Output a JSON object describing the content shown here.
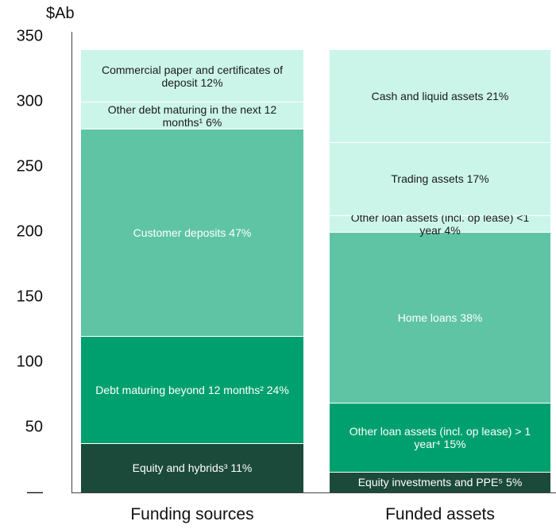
{
  "chart_data": {
    "type": "stacked_bar",
    "y_label": "$Ab",
    "ylim": [
      0,
      350
    ],
    "yticks": [
      {
        "value": 0,
        "label": "—"
      },
      50,
      100,
      150,
      200,
      250,
      300,
      350
    ],
    "bars": [
      {
        "category": "Funding sources",
        "segments": [
          {
            "label": "Equity and hybrids³ 11%",
            "value": 38,
            "color": "#1c4a3a",
            "text_color": "#ffffff"
          },
          {
            "label": "Debt maturing beyond 12 months² 24%",
            "value": 82,
            "color": "#00a06e",
            "text_color": "#ffffff"
          },
          {
            "label": "Customer deposits 47%",
            "value": 159,
            "color": "#5ec4a4",
            "text_color": "#ffffff"
          },
          {
            "label": "Other debt maturing in the next 12 months¹ 6%",
            "value": 21,
            "color": "#ccf5ea",
            "text_color": "#1a1a1a"
          },
          {
            "label": "Commercial paper and certificates of deposit 12%",
            "value": 40,
            "color": "#ccf5ea",
            "text_color": "#1a1a1a"
          }
        ]
      },
      {
        "category": "Funded assets",
        "segments": [
          {
            "label": "Equity investments and PPE⁵ 5%",
            "value": 16,
            "color": "#1c4a3a",
            "text_color": "#ffffff"
          },
          {
            "label": "Other loan assets (incl. op lease) > 1 year⁴ 15%",
            "value": 53,
            "color": "#00a06e",
            "text_color": "#ffffff"
          },
          {
            "label": "Home loans 38%",
            "value": 131,
            "color": "#5ec4a4",
            "text_color": "#ffffff"
          },
          {
            "label": "Other loan assets (incl. op lease) <1 year 4%",
            "value": 13,
            "color": "#ccf5ea",
            "text_color": "#1a1a1a"
          },
          {
            "label": "Trading assets 17%",
            "value": 56,
            "color": "#ccf5ea",
            "text_color": "#1a1a1a"
          },
          {
            "label": "Cash and liquid assets 21%",
            "value": 71,
            "color": "#ccf5ea",
            "text_color": "#1a1a1a"
          }
        ]
      }
    ]
  }
}
